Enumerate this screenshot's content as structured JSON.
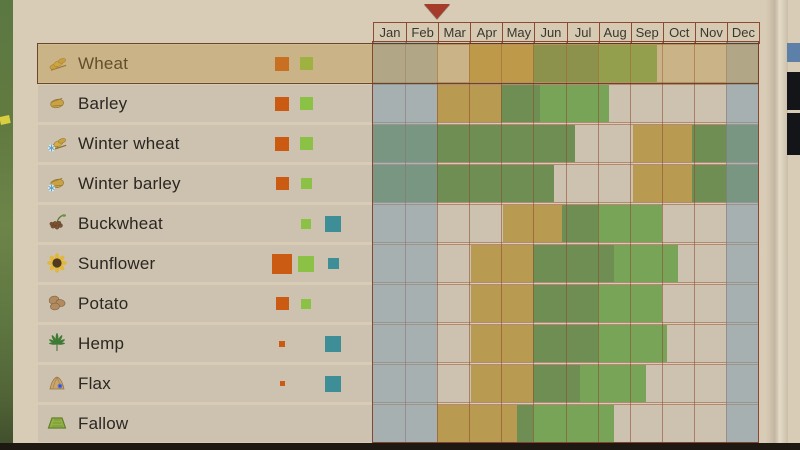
{
  "calendar": {
    "months": [
      "Jan",
      "Feb",
      "Mar",
      "Apr",
      "May",
      "Jun",
      "Jul",
      "Aug",
      "Sep",
      "Oct",
      "Nov",
      "Dec"
    ],
    "frost_months": [
      0,
      1,
      11
    ],
    "current_marker_month": 2.0,
    "colors": {
      "sow": "#b89a50",
      "grow": "#6e8e53",
      "harvest": "#78a457",
      "frost_overlay": "#829db0",
      "marker": "#a43b2b",
      "orange_indicator": "#cb5a13",
      "green_indicator": "#8bc144",
      "teal_indicator": "#3e8e98"
    },
    "rows": [
      {
        "name": "Wheat",
        "icon": "wheat-icon",
        "selected": true,
        "indicators": [
          {
            "color": "orange",
            "size": 14
          },
          {
            "color": "green",
            "size": 13
          }
        ],
        "segments": [
          {
            "type": "sow",
            "start": 3.0,
            "end": 5.0
          },
          {
            "type": "grow",
            "start": 5.0,
            "end": 7.0
          },
          {
            "type": "harvest",
            "start": 7.0,
            "end": 8.85
          }
        ]
      },
      {
        "name": "Barley",
        "icon": "barley-icon",
        "selected": false,
        "indicators": [
          {
            "color": "orange",
            "size": 14
          },
          {
            "color": "green",
            "size": 13
          }
        ],
        "segments": [
          {
            "type": "sow",
            "start": 2.0,
            "end": 4.0
          },
          {
            "type": "grow",
            "start": 4.0,
            "end": 5.2
          },
          {
            "type": "harvest",
            "start": 5.2,
            "end": 7.35
          }
        ]
      },
      {
        "name": "Winter wheat",
        "icon": "winter-wheat-icon",
        "selected": false,
        "indicators": [
          {
            "color": "orange",
            "size": 14
          },
          {
            "color": "green",
            "size": 13
          }
        ],
        "segments": [
          {
            "type": "grow",
            "start": 0,
            "end": 6.3
          },
          {
            "type": "sow",
            "start": 8.1,
            "end": 9.95
          },
          {
            "type": "grow",
            "start": 9.95,
            "end": 12
          }
        ]
      },
      {
        "name": "Winter barley",
        "icon": "winter-barley-icon",
        "selected": false,
        "indicators": [
          {
            "color": "orange",
            "size": 13
          },
          {
            "color": "green",
            "size": 11
          }
        ],
        "segments": [
          {
            "type": "grow",
            "start": 0,
            "end": 5.65
          },
          {
            "type": "sow",
            "start": 8.1,
            "end": 9.95
          },
          {
            "type": "grow",
            "start": 9.95,
            "end": 12
          }
        ]
      },
      {
        "name": "Buckwheat",
        "icon": "buckwheat-icon",
        "selected": false,
        "indicators": [
          {
            "color": "green",
            "size": 10
          },
          {
            "color": "teal",
            "size": 16
          }
        ],
        "segments": [
          {
            "type": "sow",
            "start": 4.05,
            "end": 5.9
          },
          {
            "type": "grow",
            "start": 5.9,
            "end": 7.0
          },
          {
            "type": "harvest",
            "start": 7.0,
            "end": 9.0
          }
        ]
      },
      {
        "name": "Sunflower",
        "icon": "sunflower-icon",
        "selected": false,
        "indicators": [
          {
            "color": "orange",
            "size": 20
          },
          {
            "color": "green",
            "size": 16
          },
          {
            "color": "teal",
            "size": 11
          }
        ],
        "segments": [
          {
            "type": "sow",
            "start": 3.05,
            "end": 5.0
          },
          {
            "type": "grow",
            "start": 5.0,
            "end": 7.5
          },
          {
            "type": "harvest",
            "start": 7.5,
            "end": 9.5
          }
        ]
      },
      {
        "name": "Potato",
        "icon": "potato-icon",
        "selected": false,
        "indicators": [
          {
            "color": "orange",
            "size": 13
          },
          {
            "color": "green",
            "size": 10
          }
        ],
        "segments": [
          {
            "type": "sow",
            "start": 3.05,
            "end": 5.0
          },
          {
            "type": "grow",
            "start": 5.0,
            "end": 7.0
          },
          {
            "type": "harvest",
            "start": 7.0,
            "end": 9.0
          }
        ]
      },
      {
        "name": "Hemp",
        "icon": "hemp-icon",
        "selected": false,
        "indicators": [
          {
            "color": "orange",
            "size": 6
          },
          {
            "color": "teal",
            "size": 16
          }
        ],
        "segments": [
          {
            "type": "sow",
            "start": 3.05,
            "end": 5.0
          },
          {
            "type": "grow",
            "start": 5.0,
            "end": 7.0
          },
          {
            "type": "harvest",
            "start": 7.0,
            "end": 9.15
          }
        ]
      },
      {
        "name": "Flax",
        "icon": "flax-icon",
        "selected": false,
        "indicators": [
          {
            "color": "orange",
            "size": 5
          },
          {
            "color": "teal",
            "size": 16
          }
        ],
        "segments": [
          {
            "type": "sow",
            "start": 3.05,
            "end": 5.0
          },
          {
            "type": "grow",
            "start": 5.0,
            "end": 6.45
          },
          {
            "type": "harvest",
            "start": 6.45,
            "end": 8.5
          }
        ]
      },
      {
        "name": "Fallow",
        "icon": "fallow-icon",
        "selected": false,
        "indicators": [],
        "segments": [
          {
            "type": "sow",
            "start": 2.0,
            "end": 4.5
          },
          {
            "type": "grow",
            "start": 4.5,
            "end": 5.0
          },
          {
            "type": "harvest",
            "start": 5.0,
            "end": 7.5
          }
        ]
      }
    ]
  }
}
